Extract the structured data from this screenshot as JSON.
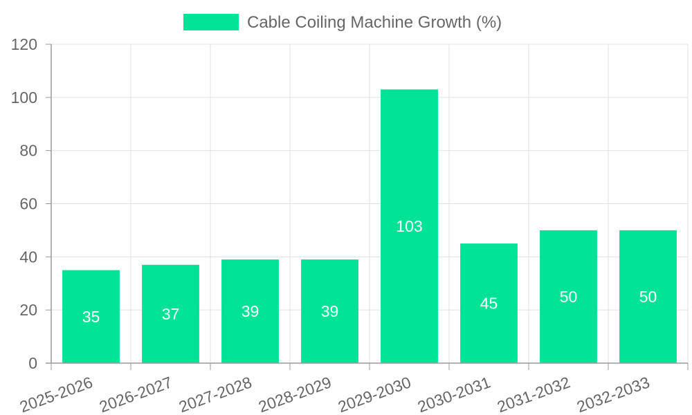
{
  "chart_data": {
    "type": "bar",
    "categories": [
      "2025-2026",
      "2026-2027",
      "2027-2028",
      "2028-2029",
      "2029-2030",
      "2030-2031",
      "2031-2032",
      "2032-2033"
    ],
    "series": [
      {
        "name": "Cable Coiling Machine Growth (%)",
        "values": [
          35,
          37,
          39,
          39,
          103,
          45,
          50,
          50
        ],
        "color": "#00e396"
      }
    ],
    "ylim": [
      0,
      120
    ],
    "yticks": [
      "0",
      "20",
      "40",
      "60",
      "80",
      "100",
      "120"
    ],
    "grid": true,
    "legend_position": "top",
    "data_labels": true
  }
}
